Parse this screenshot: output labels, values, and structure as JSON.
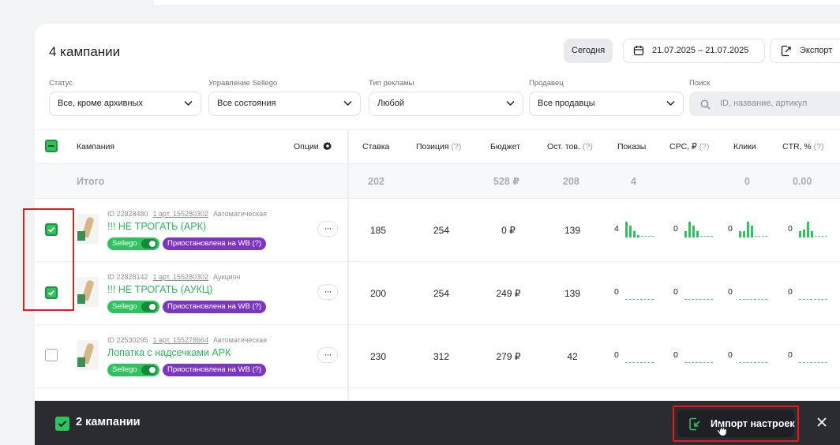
{
  "header": {
    "title": "4 кампании",
    "today_label": "Сегодня",
    "date_range": "21.07.2025 – 21.07.2025",
    "export_label": "Экспорт"
  },
  "filters": {
    "status": {
      "label": "Статус",
      "value": "Все, кроме архивных"
    },
    "sellego": {
      "label": "Управление Sellego",
      "value": "Все состояния"
    },
    "ad_type": {
      "label": "Тип рекламы",
      "value": "Любой"
    },
    "seller": {
      "label": "Продавец",
      "value": "Все продавцы"
    },
    "search": {
      "label": "Поиск",
      "placeholder": "ID, название, артикул"
    }
  },
  "table": {
    "columns": {
      "campaign": "Кампания",
      "options": "Опции",
      "bid": "Ставка",
      "position": "Позиция",
      "position_hint": "(?)",
      "budget": "Бюджет",
      "stock": "Ост. тов.",
      "stock_hint": "(?)",
      "views": "Показы",
      "cpc": "CPC, ₽",
      "cpc_hint": "(?)",
      "clicks": "Клики",
      "ctr": "CTR, %",
      "ctr_hint": "(?)"
    },
    "totals": {
      "label": "Итого",
      "bid": "202",
      "budget": "528 ₽",
      "stock": "208",
      "views": "4",
      "clicks": "0",
      "ctr": "0.00"
    },
    "rows": [
      {
        "checked": true,
        "id": "ID 22828480",
        "article": "1 арт. 155280302",
        "kind": "Автоматическая",
        "name": "!!! НЕ ТРОГАТЬ (АРК)",
        "sellego": "Sellego",
        "status": "Приостановлена на WB (?)",
        "more": "···",
        "bid": "185",
        "position": "254",
        "budget": "0 ₽",
        "stock": "139",
        "views": "4",
        "cpc": "0",
        "clicks": "0",
        "ctr": "0"
      },
      {
        "checked": true,
        "id": "ID 22828142",
        "article": "1 арт. 155280302",
        "kind": "Аукцион",
        "name": "!!! НЕ ТРОГАТЬ (АУКЦ)",
        "sellego": "Sellego",
        "status": "Приостановлена на WB (?)",
        "more": "···",
        "bid": "200",
        "position": "254",
        "budget": "249 ₽",
        "stock": "139",
        "views": "0",
        "cpc": "0",
        "clicks": "0",
        "ctr": "0"
      },
      {
        "checked": false,
        "id": "ID 22530295",
        "article": "1 арт. 155278664",
        "kind": "Автоматическая",
        "name": "Лопатка с надсечками АРК",
        "sellego": "Sellego",
        "status": "Приостановлена на WB (?)",
        "more": "···",
        "bid": "230",
        "position": "312",
        "budget": "279 ₽",
        "stock": "42",
        "views": "0",
        "cpc": "0",
        "clicks": "0",
        "ctr": "0"
      }
    ]
  },
  "bottom_bar": {
    "selected_label": "2 кампании",
    "import_label": "Импорт настроек"
  },
  "colors": {
    "accent": "#2fc35e",
    "status_badge": "#7b36c4",
    "highlight": "#e8191f",
    "bar_bg": "#2b2c30"
  },
  "icons": [
    "calendar-icon",
    "export-icon",
    "chevron-down-icon",
    "search-icon",
    "gear-icon",
    "check-icon",
    "import-icon",
    "close-icon",
    "cursor-icon"
  ]
}
